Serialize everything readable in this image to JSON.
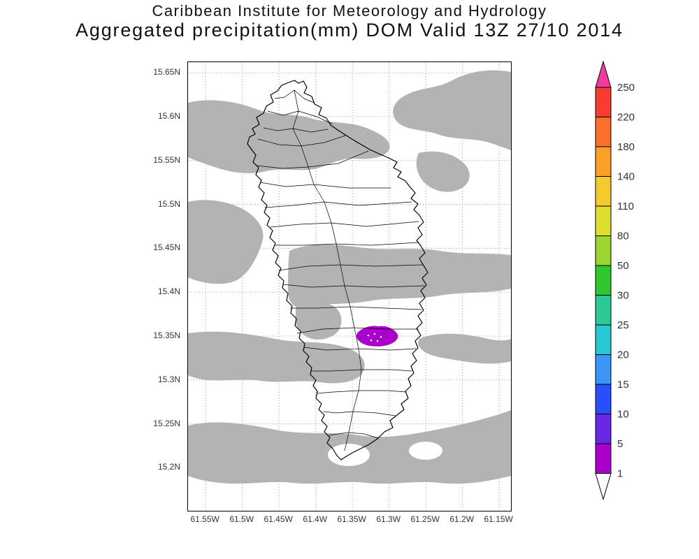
{
  "header": {
    "line1": "Caribbean Institute for Meteorology and Hydrology",
    "line2": "Aggregated precipitation(mm) DOM Valid 13Z 27/10 2014"
  },
  "chart_data": {
    "type": "heatmap",
    "title": "Caribbean Institute for Meteorology and Hydrology",
    "subtitle": "Aggregated precipitation(mm) DOM Valid 13Z 27/10 2014",
    "variable": "Aggregated precipitation",
    "units": "mm",
    "domain_code": "DOM",
    "valid_time": "13Z 27/10 2014",
    "grid": "dotted",
    "legend_position": "right-vertical-colorbar",
    "x_axis": {
      "left_w": 61.574,
      "right_w": 61.134,
      "ticks": [
        {
          "label": "61.55W",
          "lon_w": 61.55
        },
        {
          "label": "61.5W",
          "lon_w": 61.5
        },
        {
          "label": "61.45W",
          "lon_w": 61.45
        },
        {
          "label": "61.4W",
          "lon_w": 61.4
        },
        {
          "label": "61.35W",
          "lon_w": 61.35
        },
        {
          "label": "61.3W",
          "lon_w": 61.3
        },
        {
          "label": "61.25W",
          "lon_w": 61.25
        },
        {
          "label": "61.2W",
          "lon_w": 61.2
        },
        {
          "label": "61.15W",
          "lon_w": 61.15
        }
      ]
    },
    "y_axis": {
      "min_lat": 15.151,
      "max_lat": 15.662,
      "ticks": [
        {
          "label": "15.65N",
          "lat": 15.65
        },
        {
          "label": "15.6N",
          "lat": 15.6
        },
        {
          "label": "15.55N",
          "lat": 15.55
        },
        {
          "label": "15.5N",
          "lat": 15.5
        },
        {
          "label": "15.45N",
          "lat": 15.45
        },
        {
          "label": "15.4N",
          "lat": 15.4
        },
        {
          "label": "15.35N",
          "lat": 15.35
        },
        {
          "label": "15.3N",
          "lat": 15.3
        },
        {
          "label": "15.25N",
          "lat": 15.25
        },
        {
          "label": "15.2N",
          "lat": 15.2
        }
      ]
    },
    "colorbar": {
      "boundaries_top_to_bottom": [
        "250",
        "220",
        "180",
        "140",
        "110",
        "80",
        "50",
        "30",
        "25",
        "20",
        "15",
        "10",
        "5",
        "1"
      ],
      "segment_colors_top_to_bottom": [
        "#f83c32",
        "#f8702c",
        "#f8a028",
        "#f4ca2e",
        "#dede30",
        "#9cd632",
        "#2ec82e",
        "#2ec896",
        "#28c8d2",
        "#3c96fa",
        "#2850fa",
        "#6a28e6",
        "#aa00cc"
      ],
      "above_max_color": "#f23c9e",
      "below_min_color": "#ffffff",
      "gray_1_5_color": "#b3b3b3"
    },
    "shaded_features": [
      {
        "name": "light-precip-shading",
        "value_range_mm": "1-5",
        "color": "#b3b3b3",
        "description": "Widespread irregular gray bands across the domain and over the island"
      },
      {
        "name": "moderate-precip-cell",
        "value_range_mm": "5-10",
        "color": "#aa00cc",
        "center": {
          "lat": 15.35,
          "lon_w": 61.31
        },
        "description": "Small purple precipitation cell over south-central Dominica"
      }
    ],
    "map_overlay": "Dominica island coastline with interior watershed boundaries"
  }
}
